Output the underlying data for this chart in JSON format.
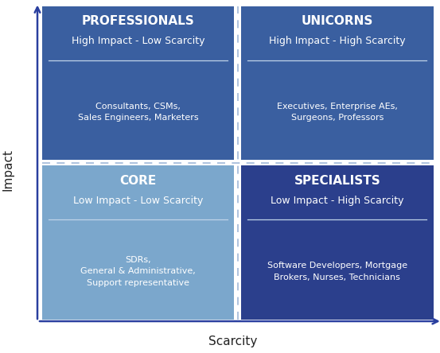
{
  "quadrants": [
    {
      "name": "PROFESSIONALS",
      "subtitle": "High Impact - Low Scarcity",
      "description": "Consultants, CSMs,\nSales Engineers, Marketers",
      "bg_color": "#3a5fa0",
      "text_color": "#ffffff",
      "position": "top-left"
    },
    {
      "name": "UNICORNS",
      "subtitle": "High Impact - High Scarcity",
      "description": "Executives, Enterprise AEs,\nSurgeons, Professors",
      "bg_color": "#3a5fa0",
      "text_color": "#ffffff",
      "position": "top-right"
    },
    {
      "name": "CORE",
      "subtitle": "Low Impact - Low Scarcity",
      "description": "SDRs,\nGeneral & Administrative,\nSupport representative",
      "bg_color": "#7ba7cc",
      "text_color": "#ffffff",
      "position": "bottom-left"
    },
    {
      "name": "SPECIALISTS",
      "subtitle": "Low Impact - High Scarcity",
      "description": "Software Developers, Mortgage\nBrokers, Nurses, Technicians",
      "bg_color": "#2b3f8c",
      "text_color": "#ffffff",
      "position": "bottom-right"
    }
  ],
  "axis_label_x": "Scarcity",
  "axis_label_y": "Impact",
  "bg_color": "#ffffff",
  "divider_line_color": "#a0b8d8",
  "separator_line_color": "#c0d4e8",
  "axis_color": "#2a3f9f",
  "title_fontsize": 11,
  "subtitle_fontsize": 9,
  "desc_fontsize": 8,
  "axis_label_fontsize": 11
}
